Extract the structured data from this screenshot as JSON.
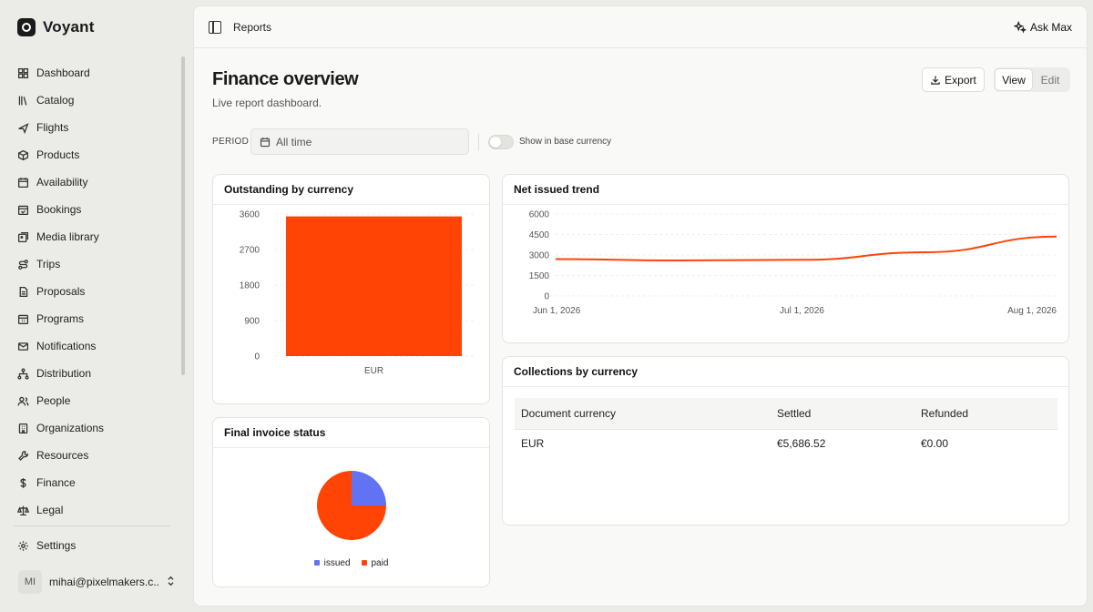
{
  "app": {
    "name": "Voyant"
  },
  "sidebar": {
    "items": [
      {
        "label": "Dashboard",
        "icon": "dashboard-icon"
      },
      {
        "label": "Catalog",
        "icon": "library-icon"
      },
      {
        "label": "Flights",
        "icon": "plane-icon"
      },
      {
        "label": "Products",
        "icon": "box-icon"
      },
      {
        "label": "Availability",
        "icon": "calendar-icon"
      },
      {
        "label": "Bookings",
        "icon": "calendar-check-icon"
      },
      {
        "label": "Media library",
        "icon": "images-icon"
      },
      {
        "label": "Trips",
        "icon": "route-icon"
      },
      {
        "label": "Proposals",
        "icon": "file-text-icon"
      },
      {
        "label": "Programs",
        "icon": "calendar-grid-icon"
      },
      {
        "label": "Notifications",
        "icon": "mail-icon"
      },
      {
        "label": "Distribution",
        "icon": "network-icon"
      },
      {
        "label": "People",
        "icon": "users-icon"
      },
      {
        "label": "Organizations",
        "icon": "building-icon"
      },
      {
        "label": "Resources",
        "icon": "wrench-icon"
      },
      {
        "label": "Finance",
        "icon": "dollar-icon"
      },
      {
        "label": "Legal",
        "icon": "scale-icon"
      }
    ],
    "settings": {
      "label": "Settings",
      "icon": "gear-icon"
    },
    "user": {
      "initials": "MI",
      "email": "mihai@pixelmakers.c...",
      "caret": "⌃⌄"
    }
  },
  "topbar": {
    "breadcrumb": "Reports",
    "ask_label": "Ask Max"
  },
  "page": {
    "title": "Finance overview",
    "subtitle": "Live report dashboard.",
    "export_label": "Export",
    "view_label": "View",
    "edit_label": "Edit"
  },
  "filters": {
    "period_label": "PERIOD",
    "period_value": "All time",
    "toggle_label": "Show in base currency",
    "toggle_on": false
  },
  "cards": {
    "outstanding_title": "Outstanding by currency",
    "trend_title": "Net issued trend",
    "invoice_title": "Final invoice status",
    "collections_title": "Collections by currency"
  },
  "collections": {
    "headers": [
      "Document currency",
      "Settled",
      "Refunded"
    ],
    "rows": [
      [
        "EUR",
        "€5,686.52",
        "€0.00"
      ]
    ]
  },
  "colors": {
    "accent": "#ff4405",
    "issued": "#6172f3",
    "paid": "#ff4405"
  },
  "chart_data": [
    {
      "type": "bar",
      "title": "Outstanding by currency",
      "categories": [
        "EUR"
      ],
      "values": [
        3540
      ],
      "ylim": [
        0,
        3600
      ],
      "yticks": [
        0,
        900,
        1800,
        2700,
        3600
      ],
      "grid": true
    },
    {
      "type": "line",
      "title": "Net issued trend",
      "x": [
        "2026-06-01",
        "2026-06-16",
        "2026-07-01",
        "2026-07-16",
        "2026-08-01"
      ],
      "values": [
        2700,
        2600,
        2650,
        3200,
        4350
      ],
      "xtick_labels": [
        "Jun 1, 2026",
        "Jul 1, 2026",
        "Aug 1, 2026"
      ],
      "ylim": [
        0,
        6000
      ],
      "yticks": [
        0,
        1500,
        3000,
        4500,
        6000
      ],
      "grid": true
    },
    {
      "type": "pie",
      "title": "Final invoice status",
      "categories": [
        "issued",
        "paid"
      ],
      "values": [
        25,
        75
      ],
      "legend": "bottom"
    }
  ]
}
